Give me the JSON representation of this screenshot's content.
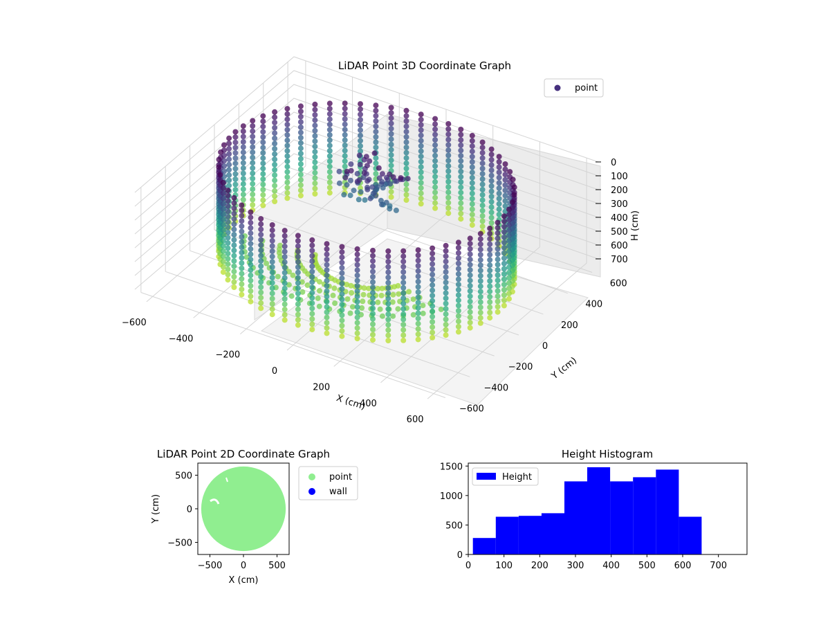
{
  "chart_data": [
    {
      "type": "scatter",
      "projection": "3d",
      "title": "LiDAR Point 3D Coordinate Graph",
      "xlabel": "X (cm)",
      "ylabel": "Y (cm)",
      "zlabel": "H (cm)",
      "xlim": [
        -650,
        650
      ],
      "ylim": [
        -650,
        650
      ],
      "zlim": [
        0,
        760
      ],
      "z_inverted": true,
      "xticks": [
        "−600",
        "−400",
        "−200",
        "0",
        "200",
        "400",
        "600"
      ],
      "yticks": [
        "−600",
        "−400",
        "−200",
        "0",
        "200",
        "400",
        "600"
      ],
      "zticks": [
        "0",
        "100",
        "200",
        "300",
        "400",
        "500",
        "600",
        "700"
      ],
      "legend": {
        "position": "top-right",
        "entries": [
          {
            "label": "point",
            "color": "#46307e"
          }
        ]
      },
      "colormap": "viridis",
      "grid": true,
      "series": [
        {
          "name": "point",
          "description_values": {
            "wall_radius_cm": 560,
            "wall_height_range_cm": [
              0,
              650
            ],
            "center_object_height_range_cm": [
              30,
              280
            ]
          }
        }
      ]
    },
    {
      "type": "scatter",
      "title": "LiDAR Point 2D Coordinate Graph",
      "xlabel": "X (cm)",
      "ylabel": "Y (cm)",
      "xlim": [
        -680,
        680
      ],
      "ylim": [
        -680,
        680
      ],
      "xticks": [
        "−500",
        "0",
        "500"
      ],
      "yticks": [
        "500",
        "0",
        "−500"
      ],
      "legend": {
        "position": "outside-right",
        "entries": [
          {
            "label": "point",
            "color": "#90ee90"
          },
          {
            "label": "wall",
            "color": "#0000ff"
          }
        ]
      },
      "series": [
        {
          "name": "point",
          "color": "#90ee90",
          "disk_radius_cm": 630,
          "disk_center": [
            0,
            0
          ]
        }
      ]
    },
    {
      "type": "bar",
      "subtype": "histogram",
      "title": "Height Histogram",
      "xlabel": "",
      "ylabel": "",
      "xlim": [
        0,
        780
      ],
      "ylim": [
        0,
        1550
      ],
      "xticks": [
        "0",
        "100",
        "200",
        "300",
        "400",
        "500",
        "600",
        "700"
      ],
      "yticks": [
        "0",
        "500",
        "1000",
        "1500"
      ],
      "legend": {
        "position": "top-left",
        "entries": [
          {
            "label": "Height",
            "color": "#0000ff"
          }
        ]
      },
      "bin_edges": [
        13,
        77,
        141,
        205,
        269,
        333,
        397,
        461,
        525,
        589,
        653
      ],
      "counts": [
        280,
        640,
        655,
        700,
        1240,
        1480,
        1240,
        1310,
        1440,
        640
      ],
      "series": [
        {
          "name": "Height",
          "color": "#0000ff"
        }
      ]
    }
  ]
}
